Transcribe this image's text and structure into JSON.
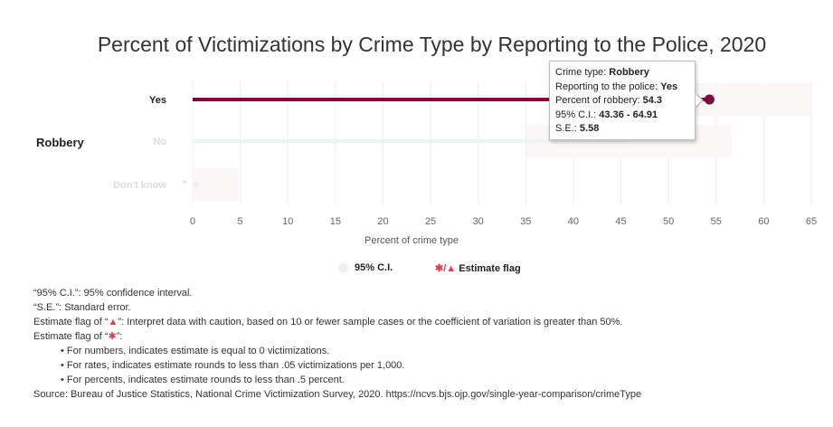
{
  "chart_data": {
    "type": "bar",
    "title": "Percent of Victimizations by Crime Type by Reporting to the Police, 2020",
    "xlabel": "Percent of crime type",
    "xlim": [
      0,
      65
    ],
    "x_ticks": [
      "0",
      "5",
      "10",
      "15",
      "20",
      "25",
      "30",
      "35",
      "40",
      "45",
      "50",
      "55",
      "60",
      "65"
    ],
    "category": "Robbery",
    "rows": [
      {
        "label": "Yes",
        "value": 54.3,
        "ci": [
          43.36,
          64.91
        ],
        "flag": "",
        "highlighted": true
      },
      {
        "label": "No",
        "value": 45.7,
        "ci": [
          35.09,
          56.64
        ],
        "flag": "",
        "highlighted": false
      },
      {
        "label": "Don't know",
        "value": 0,
        "ci": [
          0,
          4.8
        ],
        "flag": "*",
        "highlighted": false
      }
    ],
    "colors": {
      "highlight": "#7a0a3e",
      "faded_bar": "#eef4f2",
      "ci_band": "#faf7f6",
      "flag": "#d8404f"
    }
  },
  "tooltip": {
    "line1_label": "Crime type: ",
    "line1_value": "Robbery",
    "line2_label": "Reporting to the police: ",
    "line2_value": "Yes",
    "line3_label": "Percent of robbery: ",
    "line3_value": "54.3",
    "line4_label": "95% C.I.: ",
    "line4_value": "43.36 - 64.91",
    "line5_label": "S.E.: ",
    "line5_value": "5.58"
  },
  "legend": {
    "ci_label": "95% C.I.",
    "flag_symbols": "✱/▲",
    "flag_label": " Estimate flag"
  },
  "notes": {
    "ci_note": "“95% C.I.”: 95% confidence interval.",
    "se_note": "“S.E.”: Standard error.",
    "triangle_prefix": "Estimate flag of “",
    "triangle_symbol": "▲",
    "triangle_suffix": "”: Interpret data with caution, based on 10 or fewer sample cases or the coefficient of variation is greater than 50%.",
    "star_prefix": "Estimate flag of “",
    "star_symbol": "✱",
    "star_suffix": "”:",
    "bullet1": "• For numbers, indicates estimate is equal to 0 victimizations.",
    "bullet2": "• For rates, indicates estimate rounds to less than .05 victimizations per 1,000.",
    "bullet3": "• For percents, indicates estimate rounds to less than .5 percent.",
    "source": "Source: Bureau of Justice Statistics, National Crime Victimization Survey, 2020. https://ncvs.bjs.ojp.gov/single-year-comparison/crimeType"
  }
}
